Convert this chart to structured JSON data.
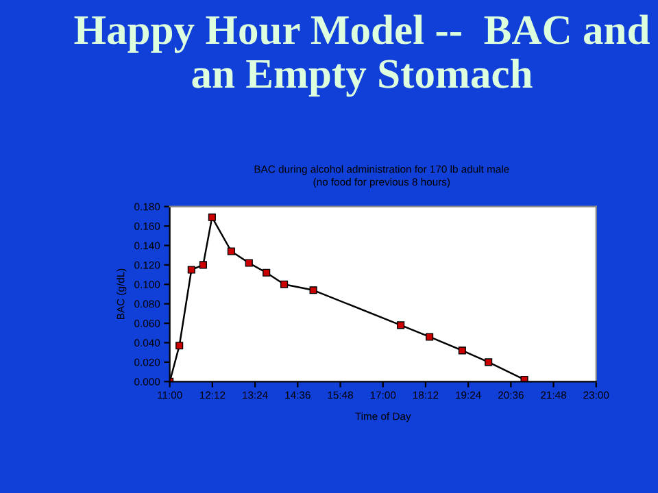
{
  "chart_data": {
    "type": "line",
    "title": "Happy Hour Model --  BAC and an Empty Stomach",
    "subtitle": "BAC during alcohol administration for 170 lb adult male\n(no food for previous 8 hours)",
    "xlabel": "Time of Day",
    "ylabel": "BAC (g/dL)",
    "x": [
      11.0,
      11.27,
      11.61,
      11.94,
      12.19,
      12.73,
      13.23,
      13.72,
      14.22,
      15.04,
      17.5,
      18.31,
      19.23,
      19.97,
      20.98
    ],
    "series": [
      {
        "color": "#cc0000",
        "values": [
          0.0,
          0.037,
          0.115,
          0.12,
          0.169,
          0.134,
          0.122,
          0.112,
          0.1,
          0.094,
          0.058,
          0.046,
          0.032,
          0.02,
          0.002
        ]
      }
    ],
    "xlim": [
      11,
      23
    ],
    "xticks": [
      {
        "value": 11,
        "label": "11:00"
      },
      {
        "value": 12.2,
        "label": "12:12"
      },
      {
        "value": 13.4,
        "label": "13:24"
      },
      {
        "value": 14.6,
        "label": "14:36"
      },
      {
        "value": 15.8,
        "label": "15:48"
      },
      {
        "value": 17,
        "label": "17:00"
      },
      {
        "value": 18.2,
        "label": "18:12"
      },
      {
        "value": 19.4,
        "label": "19:24"
      },
      {
        "value": 20.6,
        "label": "20:36"
      },
      {
        "value": 21.8,
        "label": "21:48"
      },
      {
        "value": 23,
        "label": "23:00"
      }
    ],
    "ylim": [
      0,
      0.18
    ],
    "yticks": [
      {
        "value": 0,
        "label": "0.000"
      },
      {
        "value": 0.02,
        "label": "0.020"
      },
      {
        "value": 0.04,
        "label": "0.040"
      },
      {
        "value": 0.06,
        "label": "0.060"
      },
      {
        "value": 0.08,
        "label": "0.080"
      },
      {
        "value": 0.1,
        "label": "0.100"
      },
      {
        "value": 0.12,
        "label": "0.120"
      },
      {
        "value": 0.14,
        "label": "0.140"
      },
      {
        "value": 0.16,
        "label": "0.160"
      },
      {
        "value": 0.18,
        "label": "0.180"
      }
    ],
    "grid": false,
    "legend": false,
    "marker": "square",
    "line_style": "solid"
  }
}
